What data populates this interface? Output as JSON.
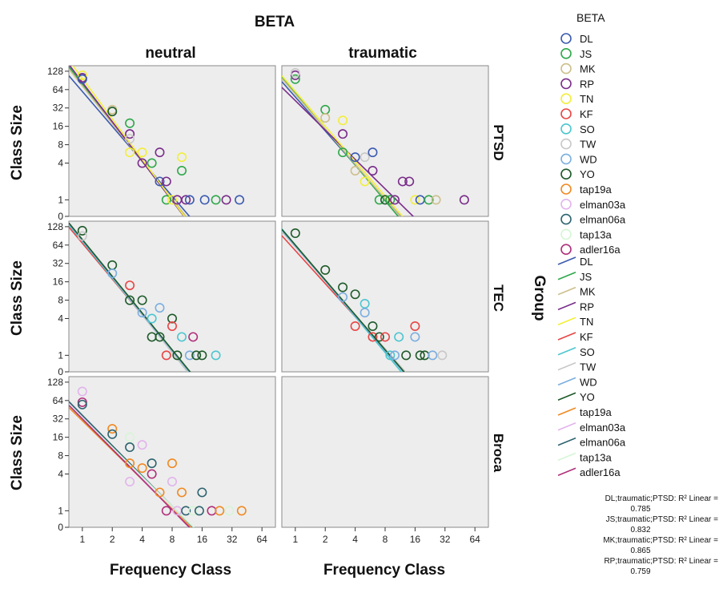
{
  "chart_data": {
    "type": "scatter",
    "title": "BETA",
    "xlabel": "Frequency Class",
    "ylabel": "Class Size",
    "group_label": "Group",
    "columns": [
      "neutral",
      "traumatic"
    ],
    "rows": [
      "PTSD",
      "TEC",
      "Broca"
    ],
    "x_scale": "log2",
    "y_scale": "log2",
    "x_ticks": [
      1,
      2,
      4,
      8,
      16,
      32,
      64
    ],
    "y_ticks": [
      0,
      1,
      4,
      8,
      16,
      32,
      64,
      128
    ],
    "grid": false,
    "legend_title": "BETA",
    "legend_position": "right",
    "series": [
      {
        "name": "DL",
        "color": "#3b5bb0"
      },
      {
        "name": "JS",
        "color": "#2ea84a"
      },
      {
        "name": "MK",
        "color": "#cdbf8c"
      },
      {
        "name": "RP",
        "color": "#7a2d8a"
      },
      {
        "name": "TN",
        "color": "#f2ee3c"
      },
      {
        "name": "KF",
        "color": "#e84545"
      },
      {
        "name": "SO",
        "color": "#4cc6d0"
      },
      {
        "name": "TW",
        "color": "#c8c8c8"
      },
      {
        "name": "WD",
        "color": "#7aaee0"
      },
      {
        "name": "YO",
        "color": "#1e5a2a"
      },
      {
        "name": "tap19a",
        "color": "#f08a22"
      },
      {
        "name": "elman03a",
        "color": "#e2b4ec"
      },
      {
        "name": "elman06a",
        "color": "#2e6470"
      },
      {
        "name": "tap13a",
        "color": "#d6f5d6"
      },
      {
        "name": "adler16a",
        "color": "#b0307a"
      }
    ],
    "panels": [
      {
        "row": "PTSD",
        "column": "neutral",
        "points": [
          [
            1,
            100,
            "RP"
          ],
          [
            1,
            110,
            "TN"
          ],
          [
            1,
            95,
            "DL"
          ],
          [
            2,
            30,
            "MK"
          ],
          [
            2,
            28,
            "YO"
          ],
          [
            3,
            18,
            "JS"
          ],
          [
            3,
            12,
            "RP"
          ],
          [
            3,
            10,
            "TW"
          ],
          [
            3,
            6,
            "TN"
          ],
          [
            4,
            4,
            "RP"
          ],
          [
            4,
            6,
            "TN"
          ],
          [
            5,
            4,
            "JS"
          ],
          [
            6,
            6,
            "RP"
          ],
          [
            6,
            2,
            "DL"
          ],
          [
            7,
            1,
            "JS"
          ],
          [
            7,
            2,
            "RP"
          ],
          [
            8,
            1,
            "TN"
          ],
          [
            9,
            1,
            "RP"
          ],
          [
            10,
            5,
            "TN"
          ],
          [
            10,
            3,
            "JS"
          ],
          [
            11,
            1,
            "RP"
          ],
          [
            12,
            1,
            "DL"
          ],
          [
            17,
            1,
            "DL"
          ],
          [
            22,
            1,
            "JS"
          ],
          [
            28,
            1,
            "RP"
          ],
          [
            38,
            1,
            "DL"
          ]
        ],
        "lines": [
          {
            "series": "DL",
            "slope": -1.9,
            "intercept": 5.9
          },
          {
            "series": "JS",
            "slope": -2.1,
            "intercept": 6.3
          },
          {
            "series": "MK",
            "slope": -2.05,
            "intercept": 6.2
          },
          {
            "series": "RP",
            "slope": -2.15,
            "intercept": 6.4
          },
          {
            "series": "TN",
            "slope": -2.2,
            "intercept": 6.6
          }
        ]
      },
      {
        "row": "PTSD",
        "column": "traumatic",
        "points": [
          [
            1,
            110,
            "RP"
          ],
          [
            1,
            95,
            "JS"
          ],
          [
            1,
            120,
            "TW"
          ],
          [
            2,
            30,
            "JS"
          ],
          [
            2,
            22,
            "MK"
          ],
          [
            3,
            20,
            "TN"
          ],
          [
            3,
            12,
            "RP"
          ],
          [
            3,
            6,
            "JS"
          ],
          [
            4,
            5,
            "DL"
          ],
          [
            4,
            3,
            "MK"
          ],
          [
            5,
            5,
            "TW"
          ],
          [
            5,
            2,
            "TN"
          ],
          [
            6,
            6,
            "DL"
          ],
          [
            6,
            3,
            "RP"
          ],
          [
            7,
            1,
            "JS"
          ],
          [
            8,
            1,
            "YO"
          ],
          [
            9,
            1,
            "JS"
          ],
          [
            10,
            1,
            "RP"
          ],
          [
            12,
            2,
            "RP"
          ],
          [
            14,
            2,
            "RP"
          ],
          [
            16,
            1,
            "TN"
          ],
          [
            18,
            1,
            "DL"
          ],
          [
            22,
            1,
            "JS"
          ],
          [
            26,
            1,
            "MK"
          ],
          [
            50,
            1,
            "RP"
          ]
        ],
        "lines": [
          {
            "series": "DL",
            "slope": -1.85,
            "intercept": 5.6
          },
          {
            "series": "JS",
            "slope": -1.95,
            "intercept": 5.8
          },
          {
            "series": "MK",
            "slope": -1.9,
            "intercept": 5.75
          },
          {
            "series": "RP",
            "slope": -1.6,
            "intercept": 5.4
          },
          {
            "series": "TN",
            "slope": -1.9,
            "intercept": 5.9
          }
        ]
      },
      {
        "row": "TEC",
        "column": "neutral",
        "points": [
          [
            1,
            110,
            "YO"
          ],
          [
            1,
            90,
            "TW"
          ],
          [
            2,
            30,
            "YO"
          ],
          [
            2,
            22,
            "WD"
          ],
          [
            3,
            14,
            "KF"
          ],
          [
            3,
            8,
            "YO"
          ],
          [
            4,
            8,
            "YO"
          ],
          [
            4,
            5,
            "WD"
          ],
          [
            5,
            4,
            "SO"
          ],
          [
            5,
            2,
            "YO"
          ],
          [
            6,
            6,
            "WD"
          ],
          [
            6,
            2,
            "YO"
          ],
          [
            7,
            1,
            "KF"
          ],
          [
            8,
            4,
            "YO"
          ],
          [
            8,
            3,
            "KF"
          ],
          [
            9,
            1,
            "YO"
          ],
          [
            10,
            2,
            "SO"
          ],
          [
            12,
            1,
            "WD"
          ],
          [
            13,
            2,
            "adler16a"
          ],
          [
            14,
            1,
            "YO"
          ],
          [
            16,
            1,
            "YO"
          ],
          [
            22,
            1,
            "SO"
          ]
        ],
        "lines": [
          {
            "series": "KF",
            "slope": -1.95,
            "intercept": 6.1
          },
          {
            "series": "SO",
            "slope": -2.0,
            "intercept": 6.2
          },
          {
            "series": "TW",
            "slope": -2.05,
            "intercept": 6.3
          },
          {
            "series": "WD",
            "slope": -2.0,
            "intercept": 6.25
          },
          {
            "series": "YO",
            "slope": -2.0,
            "intercept": 6.3
          }
        ]
      },
      {
        "row": "TEC",
        "column": "traumatic",
        "points": [
          [
            1,
            100,
            "YO"
          ],
          [
            2,
            25,
            "YO"
          ],
          [
            3,
            13,
            "YO"
          ],
          [
            3,
            9,
            "WD"
          ],
          [
            4,
            10,
            "YO"
          ],
          [
            4,
            3,
            "KF"
          ],
          [
            5,
            7,
            "SO"
          ],
          [
            5,
            5,
            "WD"
          ],
          [
            6,
            3,
            "YO"
          ],
          [
            6,
            2,
            "KF"
          ],
          [
            7,
            2,
            "YO"
          ],
          [
            8,
            2,
            "KF"
          ],
          [
            9,
            1,
            "SO"
          ],
          [
            10,
            1,
            "WD"
          ],
          [
            11,
            2,
            "SO"
          ],
          [
            13,
            1,
            "YO"
          ],
          [
            16,
            3,
            "KF"
          ],
          [
            16,
            2,
            "WD"
          ],
          [
            18,
            1,
            "YO"
          ],
          [
            20,
            1,
            "YO"
          ],
          [
            24,
            1,
            "WD"
          ],
          [
            30,
            1,
            "TW"
          ]
        ],
        "lines": [
          {
            "series": "KF",
            "slope": -1.8,
            "intercept": 5.7
          },
          {
            "series": "SO",
            "slope": -1.95,
            "intercept": 6.0
          },
          {
            "series": "TW",
            "slope": -1.85,
            "intercept": 5.9
          },
          {
            "series": "WD",
            "slope": -1.9,
            "intercept": 5.95
          },
          {
            "series": "YO",
            "slope": -1.9,
            "intercept": 6.0
          }
        ]
      },
      {
        "row": "Broca",
        "column": "neutral",
        "points": [
          [
            1,
            90,
            "elman03a"
          ],
          [
            1,
            60,
            "adler16a"
          ],
          [
            1,
            55,
            "elman06a"
          ],
          [
            2,
            22,
            "tap19a"
          ],
          [
            2,
            18,
            "elman06a"
          ],
          [
            3,
            16,
            "tap13a"
          ],
          [
            3,
            11,
            "elman06a"
          ],
          [
            3,
            6,
            "tap19a"
          ],
          [
            3,
            3,
            "elman03a"
          ],
          [
            4,
            12,
            "elman03a"
          ],
          [
            4,
            5,
            "tap19a"
          ],
          [
            5,
            6,
            "elman06a"
          ],
          [
            5,
            4,
            "adler16a"
          ],
          [
            6,
            2,
            "tap19a"
          ],
          [
            7,
            1,
            "adler16a"
          ],
          [
            8,
            6,
            "tap19a"
          ],
          [
            8,
            3,
            "elman03a"
          ],
          [
            9,
            1,
            "elman03a"
          ],
          [
            10,
            2,
            "tap19a"
          ],
          [
            11,
            1,
            "elman06a"
          ],
          [
            13,
            1,
            "tap13a"
          ],
          [
            15,
            1,
            "elman06a"
          ],
          [
            16,
            2,
            "elman06a"
          ],
          [
            20,
            1,
            "adler16a"
          ],
          [
            24,
            1,
            "tap19a"
          ],
          [
            30,
            1,
            "tap13a"
          ],
          [
            40,
            1,
            "tap19a"
          ]
        ],
        "lines": [
          {
            "series": "tap19a",
            "slope": -1.6,
            "intercept": 4.9
          },
          {
            "series": "elman03a",
            "slope": -1.7,
            "intercept": 5.15
          },
          {
            "series": "elman06a",
            "slope": -1.65,
            "intercept": 5.2
          },
          {
            "series": "tap13a",
            "slope": -1.6,
            "intercept": 5.05
          },
          {
            "series": "adler16a",
            "slope": -1.65,
            "intercept": 5.0
          }
        ]
      },
      {
        "row": "Broca",
        "column": "traumatic",
        "points": [],
        "lines": []
      }
    ],
    "r2_notes": [
      {
        "label": "DL;traumatic;PTSD: R² Linear =",
        "value": "0.785"
      },
      {
        "label": "JS;traumatic;PTSD: R² Linear =",
        "value": "0.832"
      },
      {
        "label": "MK;traumatic;PTSD: R² Linear =",
        "value": "0.865"
      },
      {
        "label": "RP;traumatic;PTSD: R² Linear =",
        "value": "0.759"
      }
    ]
  }
}
